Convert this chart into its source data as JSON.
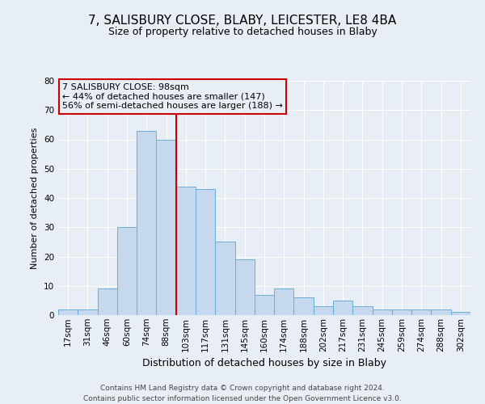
{
  "title": "7, SALISBURY CLOSE, BLABY, LEICESTER, LE8 4BA",
  "subtitle": "Size of property relative to detached houses in Blaby",
  "xlabel": "Distribution of detached houses by size in Blaby",
  "ylabel": "Number of detached properties",
  "footer_line1": "Contains HM Land Registry data © Crown copyright and database right 2024.",
  "footer_line2": "Contains public sector information licensed under the Open Government Licence v3.0.",
  "bar_labels": [
    "17sqm",
    "31sqm",
    "46sqm",
    "60sqm",
    "74sqm",
    "88sqm",
    "103sqm",
    "117sqm",
    "131sqm",
    "145sqm",
    "160sqm",
    "174sqm",
    "188sqm",
    "202sqm",
    "217sqm",
    "231sqm",
    "245sqm",
    "259sqm",
    "274sqm",
    "288sqm",
    "302sqm"
  ],
  "bar_values": [
    2,
    2,
    9,
    30,
    63,
    60,
    44,
    43,
    25,
    19,
    7,
    9,
    6,
    3,
    5,
    3,
    2,
    2,
    2,
    2,
    1
  ],
  "bar_color": "#c5d8ed",
  "bar_edge_color": "#6aaed6",
  "vline_x": 5.5,
  "vline_color": "#cc0000",
  "annotation_title": "7 SALISBURY CLOSE: 98sqm",
  "annotation_line1": "← 44% of detached houses are smaller (147)",
  "annotation_line2": "56% of semi-detached houses are larger (188) →",
  "annotation_box_color": "#cc0000",
  "background_color": "#e8eef5",
  "ylim": [
    0,
    80
  ],
  "yticks": [
    0,
    10,
    20,
    30,
    40,
    50,
    60,
    70,
    80
  ],
  "title_fontsize": 11,
  "subtitle_fontsize": 9,
  "ylabel_fontsize": 8,
  "xlabel_fontsize": 9,
  "tick_fontsize": 7.5,
  "footer_fontsize": 6.5
}
